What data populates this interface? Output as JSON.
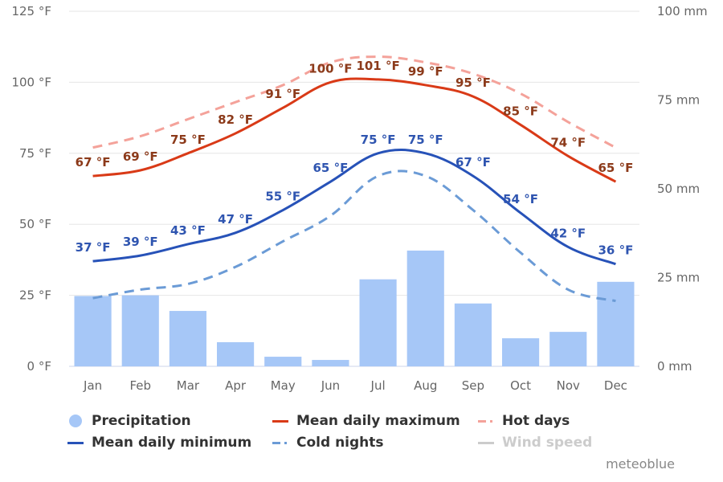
{
  "chart_data": {
    "type": "bar+line",
    "title": "",
    "categories": [
      "Jan",
      "Feb",
      "Mar",
      "Apr",
      "May",
      "Jun",
      "Jul",
      "Aug",
      "Sep",
      "Oct",
      "Nov",
      "Dec"
    ],
    "y_left": {
      "unit": "°F",
      "range": [
        0,
        125
      ],
      "ticks": [
        "0 °F",
        "25 °F",
        "50 °F",
        "75 °F",
        "100 °F",
        "125 °F"
      ],
      "tick_values": [
        0,
        25,
        50,
        75,
        100,
        125
      ]
    },
    "y_right": {
      "unit": "mm",
      "range": [
        0,
        100
      ],
      "ticks": [
        "0 mm",
        "25 mm",
        "50 mm",
        "75 mm",
        "100 mm"
      ],
      "tick_values": [
        0,
        25,
        50,
        75,
        100
      ]
    },
    "grid": true,
    "legend_position": "bottom-left",
    "series": [
      {
        "name": "Precipitation",
        "type": "bar",
        "axis": "right",
        "color": "#a6c7f7",
        "values": [
          19.8,
          20,
          15.6,
          6.8,
          2.7,
          1.8,
          24.5,
          32.6,
          17.7,
          7.9,
          9.7,
          23.8
        ]
      },
      {
        "name": "Mean daily maximum",
        "type": "line",
        "axis": "left",
        "color": "#d93a17",
        "label_color": "#8c3a1a",
        "dashed": false,
        "values": [
          67,
          69,
          75,
          82,
          91,
          100,
          101,
          99,
          95,
          85,
          74,
          65
        ],
        "labels": [
          "67 °F",
          "69 °F",
          "75 °F",
          "82 °F",
          "91 °F",
          "100 °F",
          "101 °F",
          "99 °F",
          "95 °F",
          "85 °F",
          "74 °F",
          "65 °F"
        ]
      },
      {
        "name": "Hot days",
        "type": "line",
        "axis": "left",
        "color": "#f4a29a",
        "dashed": true,
        "values": [
          77,
          81,
          87,
          93,
          99,
          107,
          109,
          107,
          103,
          96,
          86,
          77
        ]
      },
      {
        "name": "Mean daily minimum",
        "type": "line",
        "axis": "left",
        "color": "#2752b8",
        "label_color": "#2f55b0",
        "dashed": false,
        "values": [
          37,
          39,
          43,
          47,
          55,
          65,
          75,
          75,
          67,
          54,
          42,
          36
        ],
        "labels": [
          "37 °F",
          "39 °F",
          "43 °F",
          "47 °F",
          "55 °F",
          "65 °F",
          "75 °F",
          "75 °F",
          "67 °F",
          "54 °F",
          "42 °F",
          "36 °F"
        ]
      },
      {
        "name": "Cold nights",
        "type": "line",
        "axis": "left",
        "color": "#6b9bd6",
        "dashed": true,
        "values": [
          24,
          27,
          29,
          35,
          44,
          53,
          67,
          67,
          55,
          40,
          27,
          23
        ]
      },
      {
        "name": "Wind speed",
        "type": "line",
        "axis": "left",
        "color": "#cccccc",
        "hidden": true,
        "values": []
      }
    ]
  },
  "legend": {
    "items": [
      {
        "label": "Precipitation",
        "symbol": "circle",
        "color": "#a6c7f7",
        "enabled": true
      },
      {
        "label": "Mean daily maximum",
        "symbol": "line",
        "color": "#d93a17",
        "enabled": true
      },
      {
        "label": "Hot days",
        "symbol": "dash",
        "color": "#f4a29a",
        "enabled": true
      },
      {
        "label": "Mean daily minimum",
        "symbol": "line",
        "color": "#2752b8",
        "enabled": true
      },
      {
        "label": "Cold nights",
        "symbol": "dash",
        "color": "#6b9bd6",
        "enabled": true
      },
      {
        "label": "Wind speed",
        "symbol": "line",
        "color": "#cccccc",
        "enabled": false
      }
    ]
  },
  "credit": "meteoblue"
}
